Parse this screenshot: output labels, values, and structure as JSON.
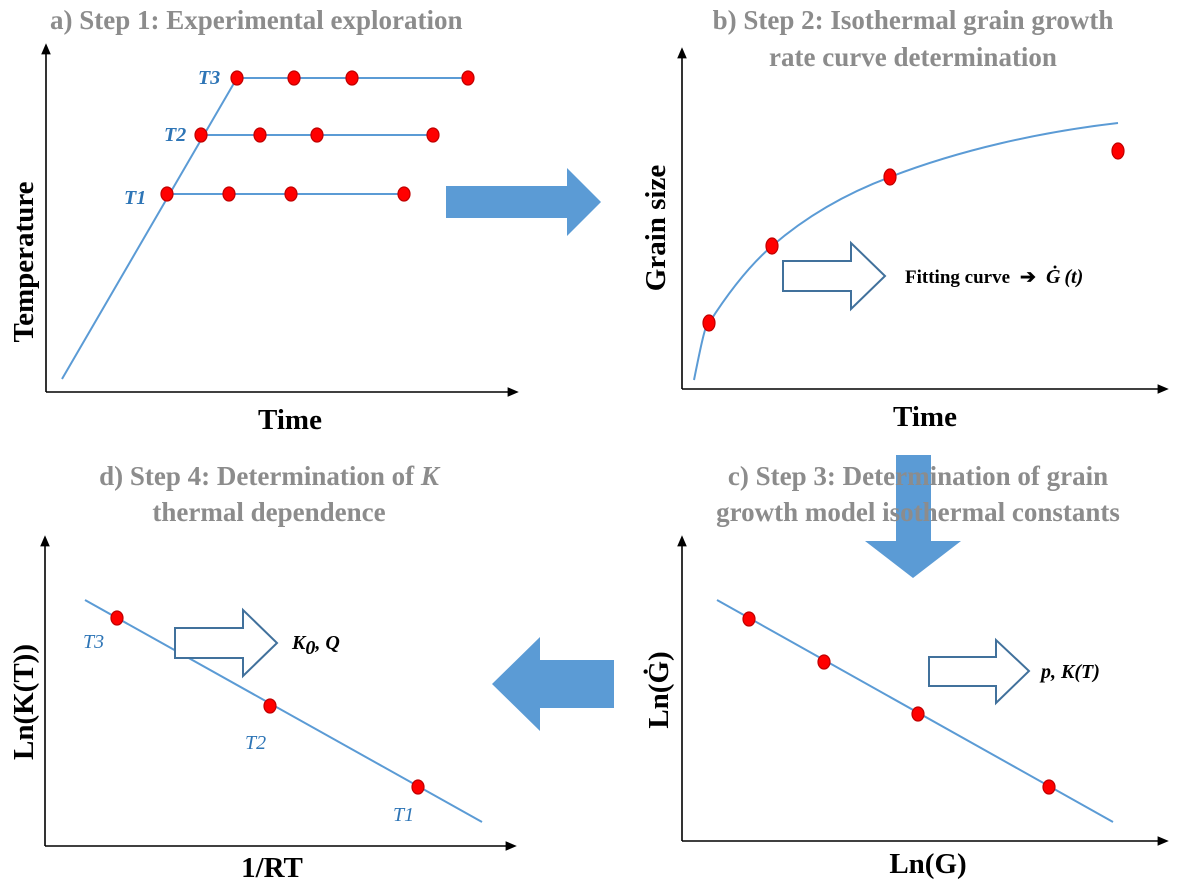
{
  "panels": {
    "a": {
      "title": "a) Step 1: Experimental exploration",
      "xlabel": "Time",
      "ylabel": "Temperature",
      "t1": "T1",
      "t2": "T2",
      "t3": "T3"
    },
    "b": {
      "title_line1": "b) Step 2: Isothermal grain growth",
      "title_line2": "rate curve determination",
      "xlabel": "Time",
      "ylabel": "Grain size",
      "note": "Fitting curve → Ġ(t)",
      "note_text": "Fitting curve",
      "note_arrow": "➔",
      "note_G": "Ġ",
      "note_t": "(t)"
    },
    "c": {
      "title_line1": "c) Step 3: Determination of grain",
      "title_line2": "growth model isothermal constants",
      "xlabel": "Ln(G)",
      "ylabel": "Ln(Ġ)",
      "note": "p, K(T)"
    },
    "d": {
      "title_line1_prefix": "d) Step 4: Determination of ",
      "title_line1_var": "K",
      "title_line2": "thermal dependence",
      "xlabel": "1/RT",
      "ylabel": "Ln(K(T))",
      "note_K": "K",
      "note_sub": "0",
      "note_rest": ", Q",
      "t1": "T1",
      "t2": "T2",
      "t3": "T3"
    }
  },
  "colors": {
    "title": "#8c8c8c",
    "curve": "#5b9bd5",
    "dot": "#ff0000",
    "flow_arrow": "#5b9bd5",
    "temp_label": "#2e75b6"
  }
}
